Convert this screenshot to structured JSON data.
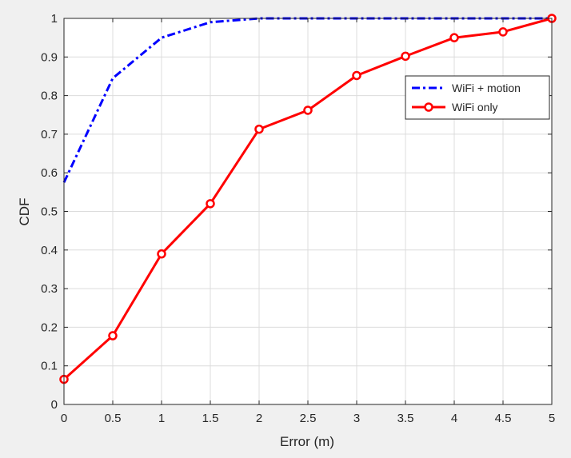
{
  "chart_data": {
    "type": "line",
    "xlabel": "Error (m)",
    "ylabel": "CDF",
    "xlim": [
      0,
      5
    ],
    "ylim": [
      0,
      1
    ],
    "xticks": [
      0,
      0.5,
      1,
      1.5,
      2,
      2.5,
      3,
      3.5,
      4,
      4.5,
      5
    ],
    "yticks": [
      0,
      0.1,
      0.2,
      0.3,
      0.4,
      0.5,
      0.6,
      0.7,
      0.8,
      0.9,
      1
    ],
    "grid": true,
    "legend_position": "upper-right",
    "series": [
      {
        "name": "WiFi + motion",
        "color": "#0000ff",
        "style": "dash-dot",
        "marker": "none",
        "x": [
          0,
          0.5,
          1,
          1.5,
          2,
          2.5,
          3,
          3.5,
          4,
          4.5,
          5
        ],
        "values": [
          0.575,
          0.845,
          0.95,
          0.99,
          1.0,
          1.0,
          1.0,
          1.0,
          1.0,
          1.0,
          1.0
        ]
      },
      {
        "name": "WiFi only",
        "color": "#ff0000",
        "style": "solid",
        "marker": "circle",
        "x": [
          0,
          0.5,
          1,
          1.5,
          2,
          2.5,
          3,
          3.5,
          4,
          4.5,
          5
        ],
        "values": [
          0.065,
          0.178,
          0.39,
          0.52,
          0.713,
          0.762,
          0.852,
          0.902,
          0.95,
          0.965,
          1.0
        ]
      }
    ]
  }
}
